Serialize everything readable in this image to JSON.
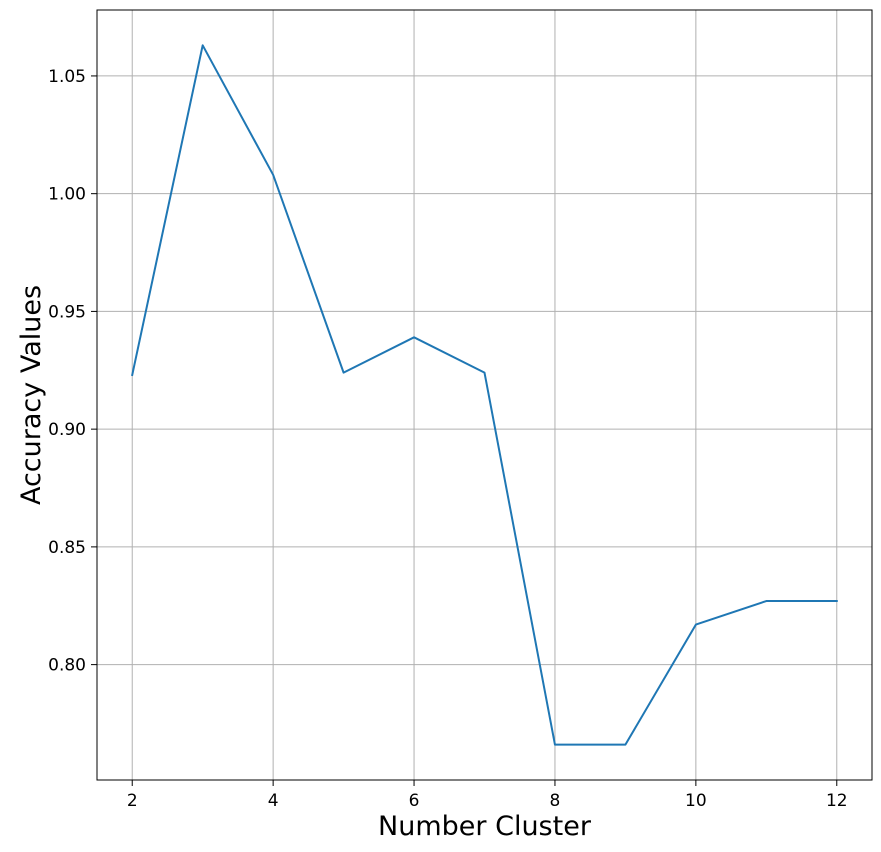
{
  "chart_data": {
    "type": "line",
    "title": "",
    "xlabel": "Number Cluster",
    "ylabel": "Accuracy Values",
    "x": [
      2,
      3,
      4,
      5,
      6,
      7,
      8,
      9,
      10,
      11,
      12
    ],
    "series": [
      {
        "values": [
          0.923,
          1.063,
          1.008,
          0.924,
          0.939,
          0.924,
          0.766,
          0.766,
          0.817,
          0.827,
          0.827
        ],
        "color": "#1f77b4"
      }
    ],
    "xlim": [
      1.5,
      12.5
    ],
    "ylim": [
      0.751,
      1.078
    ],
    "xticks": [
      2,
      4,
      6,
      8,
      10,
      12
    ],
    "xtick_labels": [
      "2",
      "4",
      "6",
      "8",
      "10",
      "12"
    ],
    "yticks": [
      0.8,
      0.85,
      0.9,
      0.95,
      1.0,
      1.05
    ],
    "ytick_labels": [
      "0.80",
      "0.85",
      "0.90",
      "0.95",
      "1.00",
      "1.05"
    ],
    "grid": true,
    "legend": "none"
  }
}
